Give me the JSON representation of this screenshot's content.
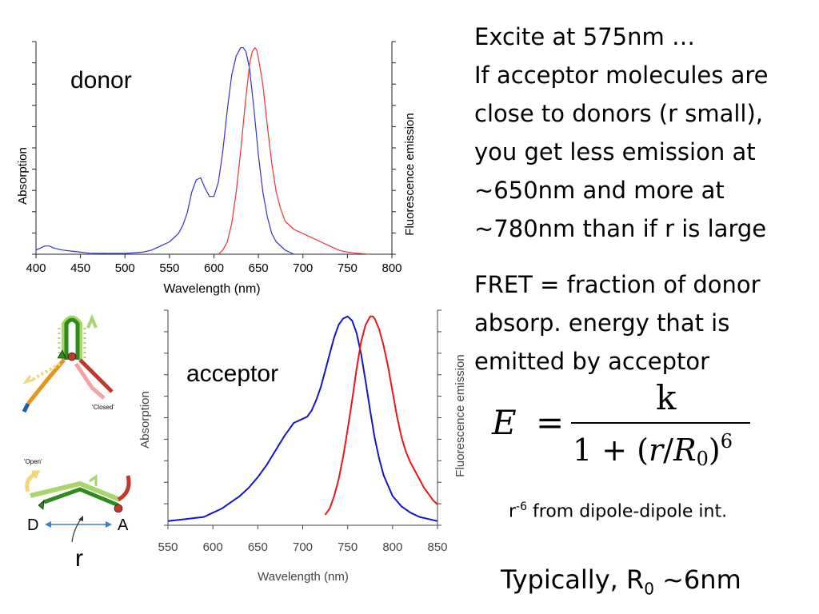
{
  "text": {
    "para1": [
      "Excite at 575nm …",
      "If acceptor molecules are",
      "close to donors (r small),",
      "you get less emission at",
      "~650nm and more at",
      "~780nm than if r is large"
    ],
    "para2": [
      "FRET = fraction of donor",
      "absorp. energy that is",
      "emitted by acceptor"
    ],
    "formula": {
      "lhs": "E",
      "eq": "=",
      "numerator": "k",
      "den_a": "1 + (",
      "den_r": "r",
      "den_slash": "/",
      "den_R": "R",
      "den_sub": "0",
      "den_close": ")",
      "den_exp": "6"
    },
    "note": {
      "r": "r",
      "exp": "-6",
      "rest": " from dipole-dipole int."
    },
    "typically": {
      "prefix": "Typically, R",
      "sub": "0",
      "suffix": " ~6nm"
    }
  },
  "diagram": {
    "closed_label": "'Closed'",
    "open_label": "'Open'",
    "D": "D",
    "A": "A",
    "r": "r",
    "colors": {
      "green": "#2e8b1e",
      "lightgreen": "#a8d66a",
      "orange": "#e8941c",
      "yellow": "#f2d878",
      "red": "#c0392b",
      "pink": "#f4a3a3",
      "blue": "#1b5fa8",
      "arrow": "#3f7fd0"
    }
  },
  "chart_data": [
    {
      "type": "line",
      "label": "donor",
      "xlabel": "Wavelength (nm)",
      "ylabel_left": "Absorption",
      "ylabel_right": "Fluorescence emission",
      "xlim": [
        400,
        800
      ],
      "ylim": [
        0,
        1.03
      ],
      "xticks": [
        400,
        450,
        500,
        550,
        600,
        650,
        700,
        750,
        800
      ],
      "series": [
        {
          "color": "#3333cc",
          "x": [
            400,
            405,
            410,
            415,
            420,
            430,
            440,
            450,
            460,
            480,
            500,
            520,
            530,
            540,
            550,
            560,
            565,
            570,
            575,
            580,
            585,
            590,
            595,
            600,
            605,
            610,
            615,
            620,
            625,
            630,
            633,
            636,
            640,
            645,
            650,
            655,
            660,
            665,
            670,
            680,
            690
          ],
          "y": [
            0.02,
            0.03,
            0.04,
            0.04,
            0.03,
            0.02,
            0.015,
            0.01,
            0.005,
            0.004,
            0.004,
            0.01,
            0.02,
            0.04,
            0.06,
            0.1,
            0.14,
            0.2,
            0.3,
            0.36,
            0.37,
            0.32,
            0.28,
            0.28,
            0.35,
            0.5,
            0.7,
            0.87,
            0.96,
            1.0,
            1.0,
            0.98,
            0.9,
            0.7,
            0.48,
            0.3,
            0.18,
            0.1,
            0.06,
            0.02,
            0.0
          ]
        },
        {
          "color": "#ee3333",
          "x": [
            605,
            610,
            615,
            620,
            625,
            630,
            635,
            640,
            643,
            646,
            648,
            650,
            655,
            660,
            665,
            670,
            675,
            680,
            690,
            700,
            710,
            720,
            730,
            740,
            750,
            760,
            775
          ],
          "y": [
            0.0,
            0.02,
            0.06,
            0.15,
            0.3,
            0.5,
            0.72,
            0.92,
            0.98,
            1.0,
            0.99,
            0.95,
            0.82,
            0.62,
            0.44,
            0.3,
            0.22,
            0.16,
            0.12,
            0.1,
            0.08,
            0.06,
            0.04,
            0.02,
            0.01,
            0.005,
            0.0
          ]
        }
      ]
    },
    {
      "type": "line",
      "label": "acceptor",
      "xlabel": "Wavelength (nm)",
      "ylabel_left": "Absorption",
      "ylabel_right": "Fluorescence emission",
      "xlim": [
        550,
        850
      ],
      "ylim": [
        0,
        1.03
      ],
      "xticks": [
        550,
        600,
        650,
        700,
        750,
        800,
        850
      ],
      "series": [
        {
          "color": "#1515cc",
          "x": [
            550,
            560,
            570,
            580,
            590,
            600,
            610,
            620,
            630,
            640,
            650,
            660,
            670,
            680,
            690,
            700,
            705,
            710,
            715,
            720,
            725,
            730,
            735,
            740,
            745,
            750,
            755,
            760,
            765,
            770,
            775,
            780,
            785,
            790,
            800,
            810,
            820,
            830,
            840,
            850
          ],
          "y": [
            0.02,
            0.025,
            0.03,
            0.035,
            0.04,
            0.06,
            0.08,
            0.11,
            0.14,
            0.18,
            0.23,
            0.29,
            0.36,
            0.43,
            0.49,
            0.51,
            0.52,
            0.55,
            0.6,
            0.66,
            0.74,
            0.82,
            0.9,
            0.96,
            0.99,
            1.0,
            0.98,
            0.92,
            0.82,
            0.69,
            0.55,
            0.42,
            0.32,
            0.24,
            0.14,
            0.09,
            0.06,
            0.04,
            0.03,
            0.02
          ]
        },
        {
          "color": "#ee1515",
          "x": [
            725,
            730,
            735,
            740,
            745,
            750,
            755,
            760,
            765,
            770,
            775,
            778,
            780,
            785,
            790,
            795,
            800,
            805,
            810,
            815,
            820,
            825,
            830,
            835,
            840,
            845,
            850
          ],
          "y": [
            0.05,
            0.08,
            0.14,
            0.22,
            0.33,
            0.46,
            0.6,
            0.75,
            0.88,
            0.96,
            1.0,
            1.0,
            0.99,
            0.94,
            0.86,
            0.76,
            0.64,
            0.52,
            0.42,
            0.35,
            0.3,
            0.26,
            0.22,
            0.18,
            0.15,
            0.12,
            0.1
          ]
        }
      ]
    }
  ]
}
